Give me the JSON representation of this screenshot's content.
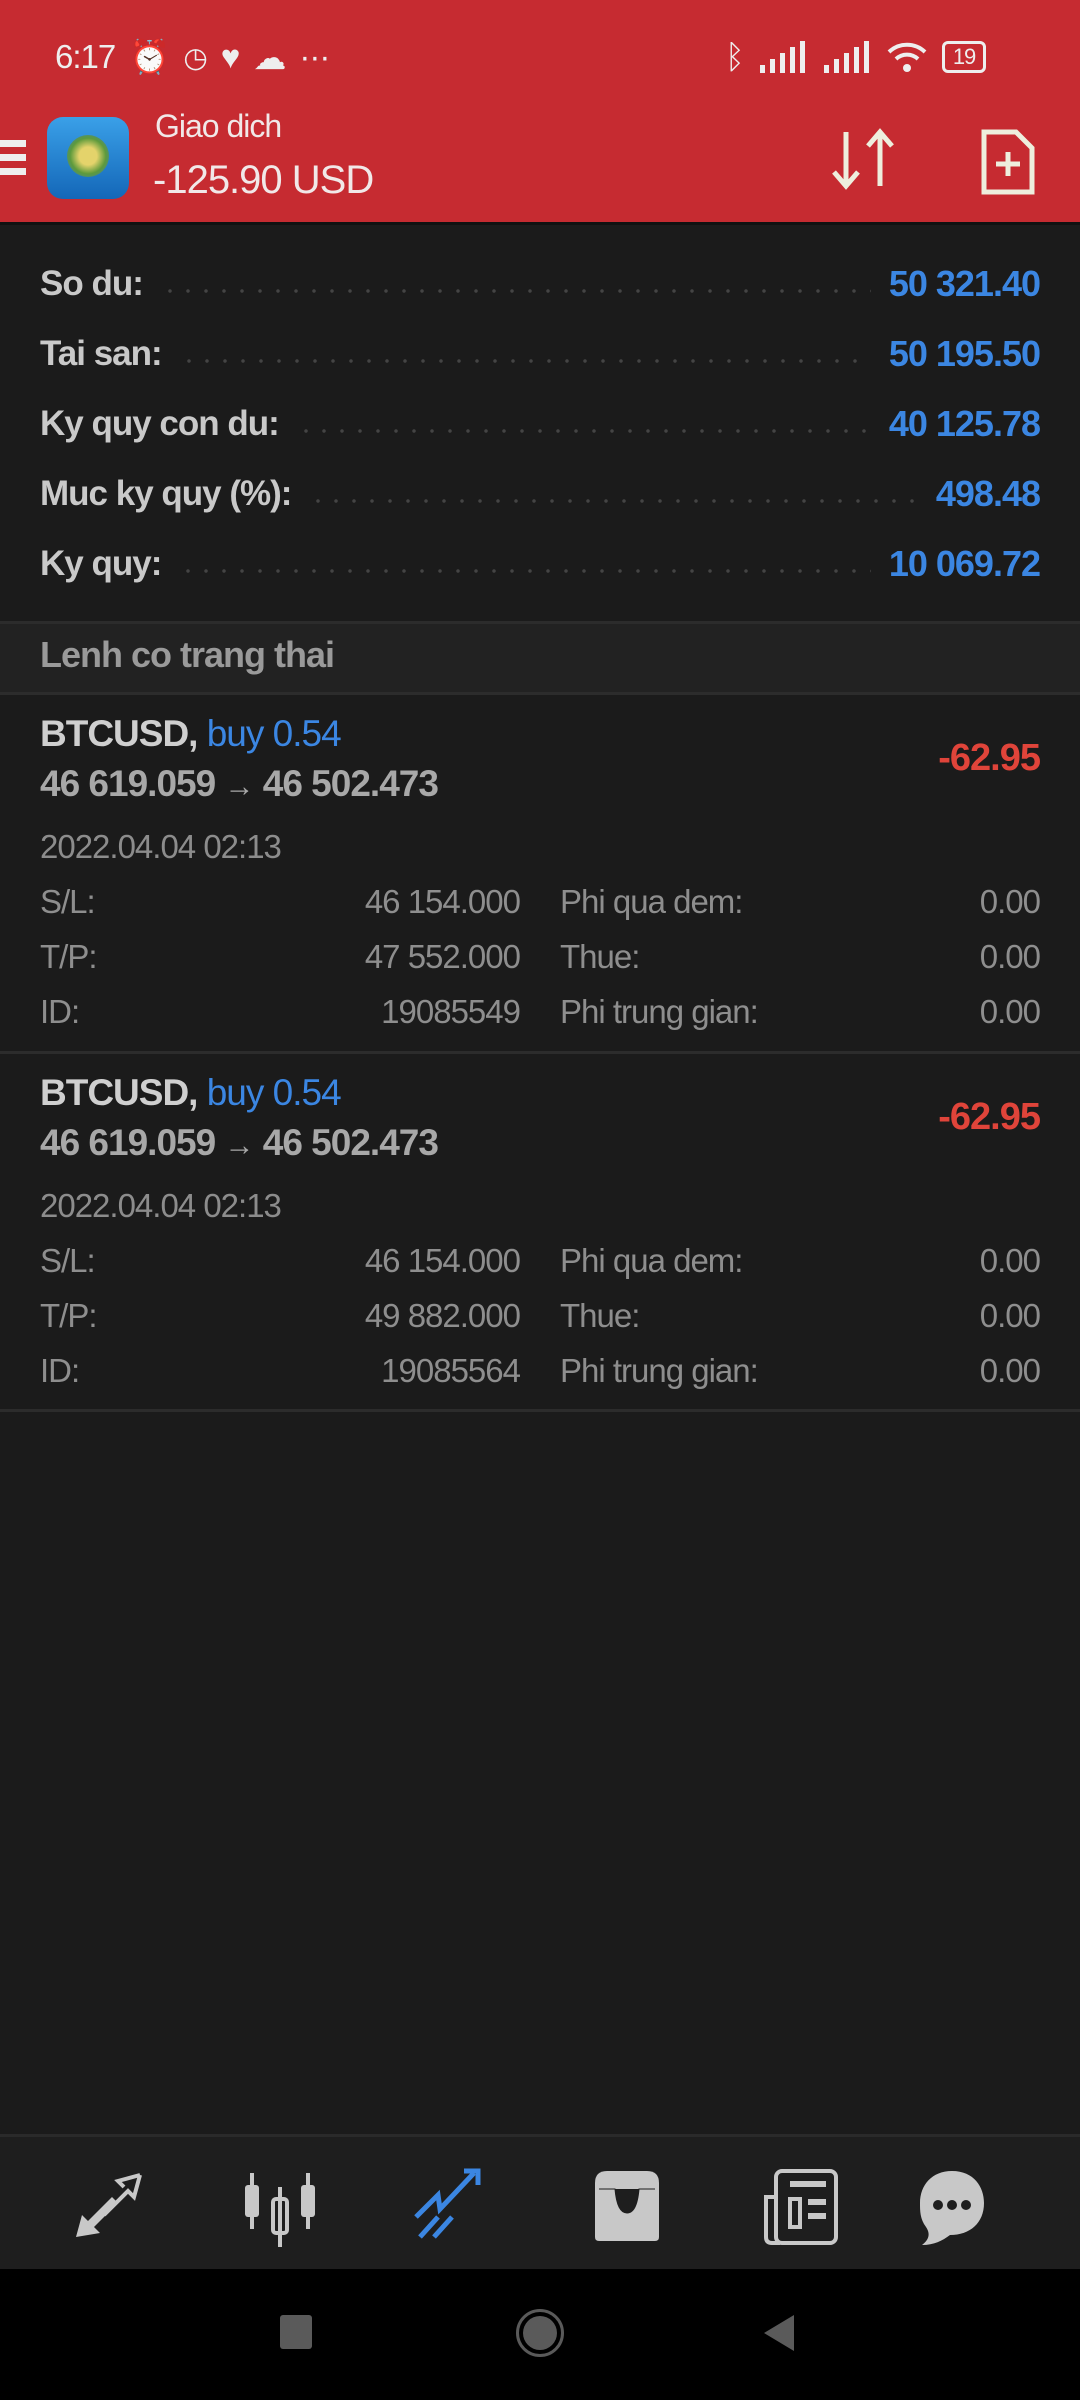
{
  "status_bar": {
    "time": "6:17",
    "battery": "19"
  },
  "header": {
    "title": "Giao dich",
    "balance": "-125.90 USD"
  },
  "summary": [
    {
      "label": "So du:",
      "value": "50 321.40"
    },
    {
      "label": "Tai san:",
      "value": "50 195.50"
    },
    {
      "label": "Ky quy con du:",
      "value": "40 125.78"
    },
    {
      "label": "Muc ky quy (%):",
      "value": "498.48"
    },
    {
      "label": "Ky quy:",
      "value": "10 069.72"
    }
  ],
  "section_title": "Lenh co trang thai",
  "positions": [
    {
      "symbol": "BTCUSD,",
      "side": "buy 0.54",
      "open": "46 619.059",
      "arrow": "→",
      "current": "46 502.473",
      "profit": "-62.95",
      "time": "2022.04.04 02:13",
      "sl_label": "S/L:",
      "sl": "46 154.000",
      "tp_label": "T/P:",
      "tp": "47 552.000",
      "id_label": "ID:",
      "id": "19085549",
      "swap_label": "Phi qua dem:",
      "swap": "0.00",
      "tax_label": "Thue:",
      "tax": "0.00",
      "comm_label": "Phi trung gian:",
      "comm": "0.00"
    },
    {
      "symbol": "BTCUSD,",
      "side": "buy 0.54",
      "open": "46 619.059",
      "arrow": "→",
      "current": "46 502.473",
      "profit": "-62.95",
      "time": "2022.04.04 02:13",
      "sl_label": "S/L:",
      "sl": "46 154.000",
      "tp_label": "T/P:",
      "tp": "49 882.000",
      "id_label": "ID:",
      "id": "19085564",
      "swap_label": "Phi qua dem:",
      "swap": "0.00",
      "tax_label": "Thue:",
      "tax": "0.00",
      "comm_label": "Phi trung gian:",
      "comm": "0.00"
    }
  ],
  "bottom_nav": [
    {
      "icon": "quotes-icon",
      "active": false
    },
    {
      "icon": "chart-icon",
      "active": false
    },
    {
      "icon": "trade-icon",
      "active": true
    },
    {
      "icon": "history-icon",
      "active": false
    },
    {
      "icon": "news-icon",
      "active": false
    },
    {
      "icon": "chat-icon",
      "active": false
    }
  ],
  "colors": {
    "header": "#c62b31",
    "accent": "#3b86e2",
    "loss": "#e0443a",
    "background": "#1b1b1b"
  }
}
